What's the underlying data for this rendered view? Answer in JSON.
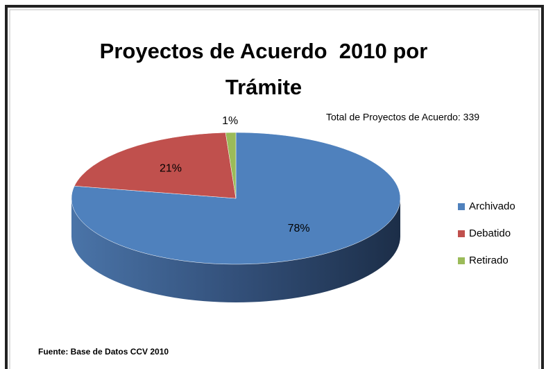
{
  "chart_data": {
    "type": "pie3d",
    "title": "Proyectos de Acuerdo  2010 por Trámite",
    "annotation": "Total de Proyectos de Acuerdo: 339",
    "source": "Fuente:  Base de Datos CCV 2010",
    "categories": [
      "Archivado",
      "Debatido",
      "Retirado"
    ],
    "values": [
      78,
      21,
      1
    ],
    "value_labels": [
      "78%",
      "21%",
      "1%"
    ],
    "colors": [
      "#4f81bd",
      "#c0504d",
      "#9bbb59"
    ],
    "legend": "right"
  }
}
